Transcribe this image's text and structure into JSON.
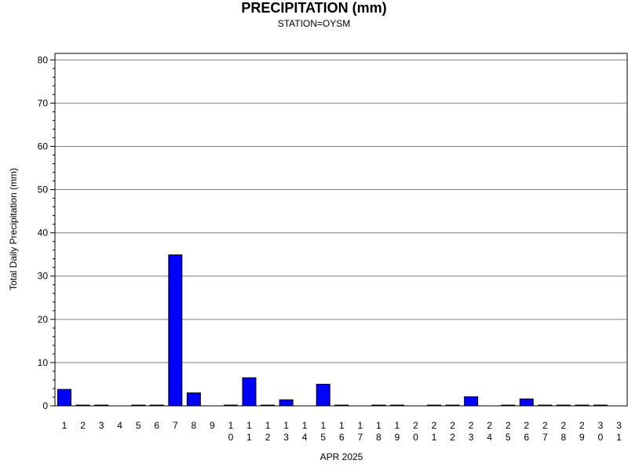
{
  "chart_data": {
    "type": "bar",
    "title": "PRECIPITATION (mm)",
    "subtitle": "STATION=OYSM",
    "xlabel": "APR 2025",
    "ylabel": "Total Daily Precipitation (mm)",
    "ylim": [
      0,
      80
    ],
    "yticks": [
      0,
      10,
      20,
      30,
      40,
      50,
      60,
      70,
      80
    ],
    "grid": true,
    "bar_color": "#0000FF",
    "categories": [
      "1",
      "2",
      "3",
      "4",
      "5",
      "6",
      "7",
      "8",
      "9",
      "10",
      "11",
      "12",
      "13",
      "14",
      "15",
      "16",
      "17",
      "18",
      "19",
      "20",
      "21",
      "22",
      "23",
      "24",
      "25",
      "26",
      "27",
      "28",
      "29",
      "30",
      "31"
    ],
    "values": [
      3.8,
      0.1,
      0.1,
      null,
      0.1,
      0.1,
      34.9,
      3.0,
      null,
      0.1,
      6.5,
      0.1,
      1.4,
      null,
      5.0,
      0.1,
      null,
      0.1,
      0.1,
      null,
      0.1,
      0.1,
      2.1,
      null,
      0.1,
      1.6,
      0.1,
      0.1,
      0.1,
      0.1,
      null
    ]
  }
}
